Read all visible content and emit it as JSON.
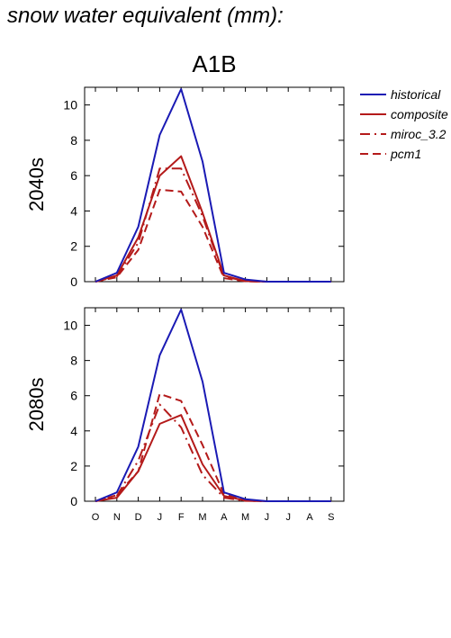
{
  "title": "snow water equivalent (mm):",
  "chart_data": {
    "type": "line",
    "scenario": "A1B",
    "months": [
      "O",
      "N",
      "D",
      "J",
      "F",
      "M",
      "A",
      "M",
      "J",
      "J",
      "A",
      "S"
    ],
    "ylim": [
      0,
      11
    ],
    "yticks": [
      "0",
      "2",
      "4",
      "6",
      "8",
      "10"
    ],
    "legend_position": "right",
    "legend": [
      {
        "name": "historical",
        "color": "#1a1ab4",
        "dash": "solid"
      },
      {
        "name": "composite",
        "color": "#b41a1a",
        "dash": "solid"
      },
      {
        "name": "miroc_3.2",
        "color": "#b41a1a",
        "dash": "dashdot"
      },
      {
        "name": "pcm1",
        "color": "#b41a1a",
        "dash": "dashed"
      }
    ],
    "panels": [
      {
        "label": "2040s",
        "series": [
          {
            "name": "historical",
            "values": [
              0,
              0.5,
              3.1,
              8.3,
              10.9,
              6.8,
              0.5,
              0.12,
              0,
              0,
              0,
              0
            ]
          },
          {
            "name": "composite",
            "values": [
              0,
              0.35,
              2.5,
              6.0,
              7.1,
              3.9,
              0.35,
              0.03,
              0,
              0,
              0,
              0
            ]
          },
          {
            "name": "miroc_3.2",
            "values": [
              0,
              0.3,
              2.2,
              6.4,
              6.4,
              3.7,
              0.3,
              0.02,
              0,
              0,
              0,
              0
            ]
          },
          {
            "name": "pcm1",
            "values": [
              0,
              0.25,
              1.8,
              5.2,
              5.1,
              3.1,
              0.2,
              0.02,
              0,
              0,
              0,
              0
            ]
          }
        ]
      },
      {
        "label": "2080s",
        "series": [
          {
            "name": "historical",
            "values": [
              0,
              0.5,
              3.1,
              8.3,
              10.9,
              6.8,
              0.5,
              0.12,
              0,
              0,
              0,
              0
            ]
          },
          {
            "name": "composite",
            "values": [
              0,
              0.2,
              1.7,
              4.4,
              4.9,
              2.1,
              0.3,
              0.03,
              0,
              0,
              0,
              0
            ]
          },
          {
            "name": "miroc_3.2",
            "values": [
              0,
              0.3,
              2.3,
              5.5,
              4.2,
              1.5,
              0.2,
              0.02,
              0,
              0,
              0,
              0
            ]
          },
          {
            "name": "pcm1",
            "values": [
              0,
              0.35,
              1.7,
              6.1,
              5.7,
              3.2,
              0.4,
              0.03,
              0,
              0,
              0,
              0
            ]
          }
        ]
      }
    ]
  }
}
